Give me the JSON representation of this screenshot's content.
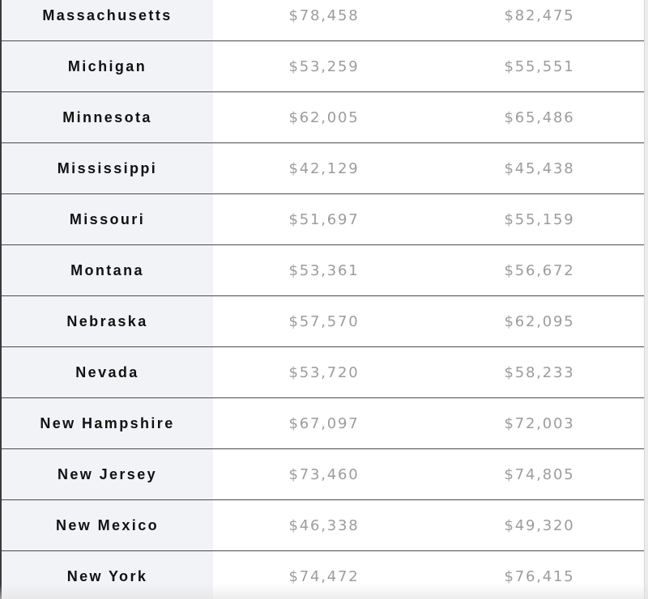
{
  "table": {
    "rows": [
      {
        "state": "Massachusetts",
        "value_1": "$78,458",
        "value_2": "$82,475"
      },
      {
        "state": "Michigan",
        "value_1": "$53,259",
        "value_2": "$55,551"
      },
      {
        "state": "Minnesota",
        "value_1": "$62,005",
        "value_2": "$65,486"
      },
      {
        "state": "Mississippi",
        "value_1": "$42,129",
        "value_2": "$45,438"
      },
      {
        "state": "Missouri",
        "value_1": "$51,697",
        "value_2": "$55,159"
      },
      {
        "state": "Montana",
        "value_1": "$53,361",
        "value_2": "$56,672"
      },
      {
        "state": "Nebraska",
        "value_1": "$57,570",
        "value_2": "$62,095"
      },
      {
        "state": "Nevada",
        "value_1": "$53,720",
        "value_2": "$58,233"
      },
      {
        "state": "New Hampshire",
        "value_1": "$67,097",
        "value_2": "$72,003"
      },
      {
        "state": "New Jersey",
        "value_1": "$73,460",
        "value_2": "$74,805"
      },
      {
        "state": "New Mexico",
        "value_1": "$46,338",
        "value_2": "$49,320"
      },
      {
        "state": "New York",
        "value_1": "$74,472",
        "value_2": "$76,415"
      }
    ]
  },
  "colors": {
    "state_column_bg": "#f2f3f6",
    "state_text": "#111111",
    "value_text": "#9c9c9c",
    "row_divider": "#4a4a4a"
  }
}
